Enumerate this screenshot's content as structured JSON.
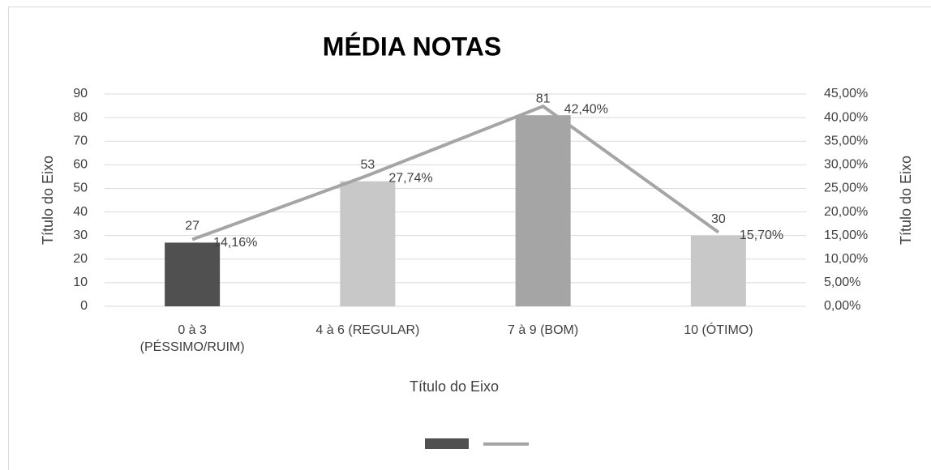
{
  "chart_data": {
    "type": "bar_line",
    "title": "MÉDIA NOTAS",
    "x_label": "Título do Eixo",
    "y_label": "Título do Eixo",
    "y2_label": "Título do Eixo",
    "categories": [
      "0 à 3 (PÉSSIMO/RUIM)",
      "4 à 6 (REGULAR)",
      "7 à 9 (BOM)",
      "10 (ÓTIMO)"
    ],
    "series": [
      {
        "type": "bar",
        "colors": [
          "#505050",
          "#c8c8c8",
          "#a5a5a5",
          "#c8c8c8"
        ],
        "color": "#505050",
        "values": [
          27,
          53,
          81,
          30
        ]
      },
      {
        "type": "line",
        "axis": "y2",
        "color": "#a5a5a5",
        "values": [
          14.16,
          27.74,
          42.4,
          15.7
        ],
        "value_labels": [
          "14,16%",
          "27,74%",
          "42,40%",
          "15,70%"
        ]
      }
    ],
    "ylim": [
      0,
      90
    ],
    "yticks": [
      0,
      10,
      20,
      30,
      40,
      50,
      60,
      70,
      80,
      90
    ],
    "y2lim": [
      0,
      45
    ],
    "y2ticks": [
      {
        "value": 0,
        "label": "0,00%"
      },
      {
        "value": 5,
        "label": "5,00%"
      },
      {
        "value": 10,
        "label": "10,00%"
      },
      {
        "value": 15,
        "label": "15,00%"
      },
      {
        "value": 20,
        "label": "20,00%"
      },
      {
        "value": 25,
        "label": "25,00%"
      },
      {
        "value": 30,
        "label": "30,00%"
      },
      {
        "value": 35,
        "label": "35,00%"
      },
      {
        "value": 40,
        "label": "40,00%"
      },
      {
        "value": 45,
        "label": "45,00%"
      }
    ],
    "grid": true,
    "legend": "bottom"
  }
}
